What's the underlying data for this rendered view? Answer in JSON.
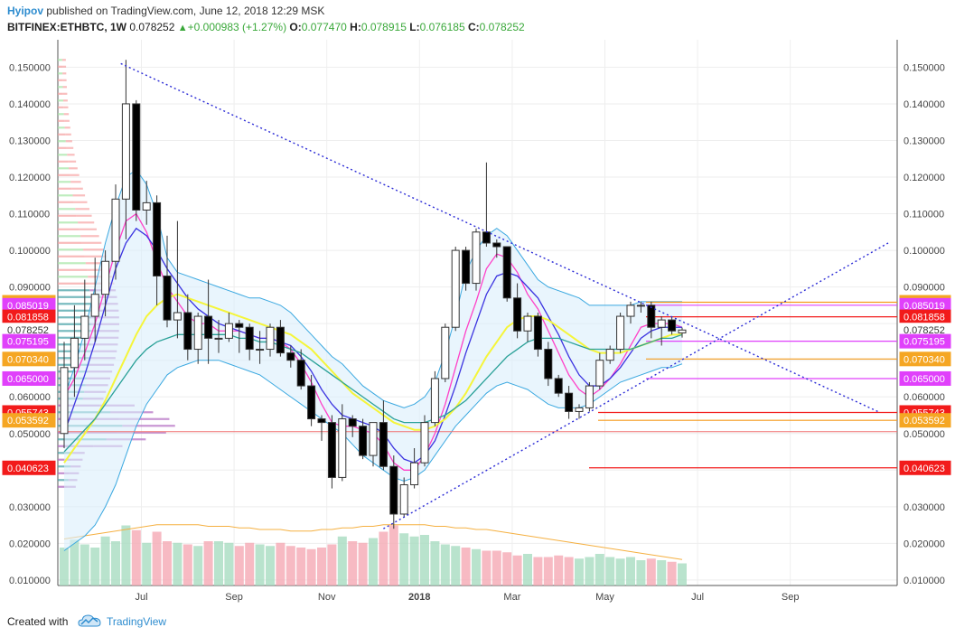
{
  "header": {
    "author": "Hyipov",
    "published_text": "published on TradingView.com, June 12, 2018 12:29 MSK",
    "symbol": "BITFINEX:ETHBTC, 1W",
    "last_price": "0.078252",
    "change": "+0.000983 (+1.27%)",
    "o_label": "O:",
    "o_value": "0.077470",
    "h_label": "H:",
    "h_value": "0.078915",
    "l_label": "L:",
    "l_value": "0.076185",
    "c_label": "C:",
    "c_value": "0.078252"
  },
  "footer": {
    "created_with": "Created with",
    "brand": "TradingView"
  },
  "chart_data": {
    "type": "candlestick",
    "symbol": "BITFINEX:ETHBTC",
    "interval": "1W",
    "y_ticks": [
      "0.150000",
      "0.140000",
      "0.130000",
      "0.120000",
      "0.110000",
      "0.100000",
      "0.090000",
      "0.080000",
      "0.070000",
      "0.060000",
      "0.050000",
      "0.040000",
      "0.030000",
      "0.020000",
      "0.010000"
    ],
    "x_ticks": [
      "Jul",
      "Sep",
      "Nov",
      "2018",
      "Mar",
      "May",
      "Jul",
      "Sep"
    ],
    "price_levels": [
      {
        "label": "0.085829",
        "value": 0.085829,
        "color": "#f5a623",
        "line": "#f59a1a"
      },
      {
        "label": "0.085019",
        "value": 0.085019,
        "color": "#e040fb",
        "line": "#e040fb"
      },
      {
        "label": "0.081858",
        "value": 0.081858,
        "color": "#f21b1b",
        "line": "#f21b1b"
      },
      {
        "label": "0.078252",
        "value": 0.078252,
        "color": "#ffffff",
        "line": ""
      },
      {
        "label": "0.075195",
        "value": 0.075195,
        "color": "#e040fb",
        "line": "#e040fb"
      },
      {
        "label": "0.070340",
        "value": 0.07034,
        "color": "#f5a623",
        "line": "#f59a1a"
      },
      {
        "label": "0.065000",
        "value": 0.065,
        "color": "#e040fb",
        "line": "#e040fb"
      },
      {
        "label": "0.055743",
        "value": 0.055743,
        "color": "#f21b1b",
        "line": "#f21b1b"
      },
      {
        "label": "0.053592",
        "value": 0.053592,
        "color": "#f5a623",
        "line": "#f59a1a"
      },
      {
        "label": "0.040623",
        "value": 0.040623,
        "color": "#f21b1b",
        "line": "#f21b1b"
      }
    ],
    "candles": [
      {
        "o": 0.05,
        "h": 0.075,
        "l": 0.046,
        "c": 0.068
      },
      {
        "o": 0.068,
        "h": 0.085,
        "l": 0.06,
        "c": 0.076
      },
      {
        "o": 0.076,
        "h": 0.092,
        "l": 0.07,
        "c": 0.082
      },
      {
        "o": 0.082,
        "h": 0.098,
        "l": 0.075,
        "c": 0.088
      },
      {
        "o": 0.088,
        "h": 0.1,
        "l": 0.082,
        "c": 0.097
      },
      {
        "o": 0.097,
        "h": 0.118,
        "l": 0.092,
        "c": 0.114
      },
      {
        "o": 0.114,
        "h": 0.152,
        "l": 0.103,
        "c": 0.14
      },
      {
        "o": 0.14,
        "h": 0.141,
        "l": 0.108,
        "c": 0.111
      },
      {
        "o": 0.111,
        "h": 0.119,
        "l": 0.107,
        "c": 0.113
      },
      {
        "o": 0.113,
        "h": 0.115,
        "l": 0.085,
        "c": 0.093
      },
      {
        "o": 0.093,
        "h": 0.104,
        "l": 0.079,
        "c": 0.081
      },
      {
        "o": 0.081,
        "h": 0.108,
        "l": 0.076,
        "c": 0.083
      },
      {
        "o": 0.083,
        "h": 0.088,
        "l": 0.07,
        "c": 0.073
      },
      {
        "o": 0.073,
        "h": 0.083,
        "l": 0.069,
        "c": 0.082
      },
      {
        "o": 0.082,
        "h": 0.092,
        "l": 0.069,
        "c": 0.076
      },
      {
        "o": 0.076,
        "h": 0.081,
        "l": 0.072,
        "c": 0.076
      },
      {
        "o": 0.076,
        "h": 0.083,
        "l": 0.075,
        "c": 0.08
      },
      {
        "o": 0.08,
        "h": 0.081,
        "l": 0.072,
        "c": 0.079
      },
      {
        "o": 0.079,
        "h": 0.08,
        "l": 0.07,
        "c": 0.073
      },
      {
        "o": 0.073,
        "h": 0.078,
        "l": 0.069,
        "c": 0.073
      },
      {
        "o": 0.073,
        "h": 0.08,
        "l": 0.071,
        "c": 0.079
      },
      {
        "o": 0.079,
        "h": 0.081,
        "l": 0.071,
        "c": 0.072
      },
      {
        "o": 0.072,
        "h": 0.074,
        "l": 0.068,
        "c": 0.07
      },
      {
        "o": 0.07,
        "h": 0.073,
        "l": 0.062,
        "c": 0.063
      },
      {
        "o": 0.063,
        "h": 0.066,
        "l": 0.052,
        "c": 0.054
      },
      {
        "o": 0.054,
        "h": 0.055,
        "l": 0.048,
        "c": 0.053
      },
      {
        "o": 0.053,
        "h": 0.055,
        "l": 0.035,
        "c": 0.038
      },
      {
        "o": 0.038,
        "h": 0.058,
        "l": 0.037,
        "c": 0.054
      },
      {
        "o": 0.054,
        "h": 0.055,
        "l": 0.049,
        "c": 0.052
      },
      {
        "o": 0.052,
        "h": 0.054,
        "l": 0.043,
        "c": 0.044
      },
      {
        "o": 0.044,
        "h": 0.053,
        "l": 0.041,
        "c": 0.053
      },
      {
        "o": 0.053,
        "h": 0.059,
        "l": 0.04,
        "c": 0.041
      },
      {
        "o": 0.041,
        "h": 0.044,
        "l": 0.024,
        "c": 0.028
      },
      {
        "o": 0.028,
        "h": 0.038,
        "l": 0.027,
        "c": 0.036
      },
      {
        "o": 0.036,
        "h": 0.046,
        "l": 0.035,
        "c": 0.042
      },
      {
        "o": 0.042,
        "h": 0.055,
        "l": 0.041,
        "c": 0.053
      },
      {
        "o": 0.053,
        "h": 0.067,
        "l": 0.052,
        "c": 0.065
      },
      {
        "o": 0.065,
        "h": 0.08,
        "l": 0.064,
        "c": 0.079
      },
      {
        "o": 0.079,
        "h": 0.101,
        "l": 0.078,
        "c": 0.1
      },
      {
        "o": 0.1,
        "h": 0.101,
        "l": 0.089,
        "c": 0.091
      },
      {
        "o": 0.091,
        "h": 0.106,
        "l": 0.089,
        "c": 0.105
      },
      {
        "o": 0.105,
        "h": 0.124,
        "l": 0.101,
        "c": 0.102
      },
      {
        "o": 0.102,
        "h": 0.103,
        "l": 0.098,
        "c": 0.101
      },
      {
        "o": 0.101,
        "h": 0.101,
        "l": 0.086,
        "c": 0.087
      },
      {
        "o": 0.087,
        "h": 0.091,
        "l": 0.076,
        "c": 0.078
      },
      {
        "o": 0.078,
        "h": 0.083,
        "l": 0.075,
        "c": 0.082
      },
      {
        "o": 0.082,
        "h": 0.083,
        "l": 0.071,
        "c": 0.073
      },
      {
        "o": 0.073,
        "h": 0.075,
        "l": 0.063,
        "c": 0.065
      },
      {
        "o": 0.065,
        "h": 0.066,
        "l": 0.06,
        "c": 0.061
      },
      {
        "o": 0.061,
        "h": 0.063,
        "l": 0.054,
        "c": 0.056
      },
      {
        "o": 0.056,
        "h": 0.058,
        "l": 0.054,
        "c": 0.057
      },
      {
        "o": 0.057,
        "h": 0.064,
        "l": 0.056,
        "c": 0.063
      },
      {
        "o": 0.063,
        "h": 0.072,
        "l": 0.062,
        "c": 0.07
      },
      {
        "o": 0.07,
        "h": 0.074,
        "l": 0.069,
        "c": 0.073
      },
      {
        "o": 0.073,
        "h": 0.083,
        "l": 0.072,
        "c": 0.082
      },
      {
        "o": 0.082,
        "h": 0.086,
        "l": 0.08,
        "c": 0.085
      },
      {
        "o": 0.085,
        "h": 0.086,
        "l": 0.083,
        "c": 0.085
      },
      {
        "o": 0.085,
        "h": 0.086,
        "l": 0.076,
        "c": 0.079
      },
      {
        "o": 0.079,
        "h": 0.082,
        "l": 0.074,
        "c": 0.081
      },
      {
        "o": 0.081,
        "h": 0.082,
        "l": 0.077,
        "c": 0.078
      },
      {
        "o": 0.07747,
        "h": 0.078915,
        "l": 0.076185,
        "c": 0.078252
      }
    ],
    "volume": [
      24,
      29,
      26,
      24,
      31,
      28,
      38,
      35,
      27,
      34,
      28,
      27,
      26,
      25,
      28,
      28,
      27,
      25,
      27,
      26,
      25,
      27,
      25,
      24,
      23,
      24,
      26,
      31,
      28,
      27,
      30,
      34,
      38,
      33,
      31,
      32,
      28,
      26,
      25,
      24,
      23,
      22,
      22,
      21,
      19,
      20,
      18,
      18,
      19,
      18,
      17,
      18,
      20,
      18,
      17,
      18,
      16,
      17,
      16,
      15,
      14
    ],
    "series": [
      {
        "name": "",
        "color": "#ff40c8",
        "values": [
          0.06,
          0.065,
          0.072,
          0.08,
          0.09,
          0.1,
          0.108,
          0.11,
          0.105,
          0.097,
          0.09,
          0.086,
          0.082,
          0.08,
          0.08,
          0.078,
          0.078,
          0.078,
          0.077,
          0.076,
          0.076,
          0.075,
          0.073,
          0.069,
          0.064,
          0.058,
          0.053,
          0.052,
          0.052,
          0.051,
          0.05,
          0.047,
          0.042,
          0.04,
          0.04,
          0.044,
          0.05,
          0.058,
          0.068,
          0.078,
          0.086,
          0.095,
          0.099,
          0.098,
          0.094,
          0.088,
          0.084,
          0.078,
          0.072,
          0.066,
          0.062,
          0.06,
          0.062,
          0.065,
          0.069,
          0.074,
          0.079,
          0.08,
          0.08,
          0.08,
          0.079
        ]
      },
      {
        "name": "",
        "color": "#3b33e0",
        "values": [
          0.05,
          0.058,
          0.066,
          0.075,
          0.085,
          0.095,
          0.102,
          0.106,
          0.104,
          0.1,
          0.095,
          0.091,
          0.087,
          0.084,
          0.082,
          0.08,
          0.079,
          0.078,
          0.077,
          0.076,
          0.076,
          0.075,
          0.074,
          0.071,
          0.067,
          0.062,
          0.058,
          0.055,
          0.054,
          0.053,
          0.052,
          0.05,
          0.046,
          0.043,
          0.042,
          0.044,
          0.048,
          0.055,
          0.063,
          0.072,
          0.08,
          0.088,
          0.093,
          0.094,
          0.093,
          0.09,
          0.087,
          0.082,
          0.077,
          0.071,
          0.066,
          0.063,
          0.063,
          0.065,
          0.068,
          0.072,
          0.076,
          0.078,
          0.079,
          0.079,
          0.079
        ]
      },
      {
        "name": "",
        "color": "#f5f53a",
        "values": [
          0.042,
          0.046,
          0.05,
          0.054,
          0.059,
          0.065,
          0.071,
          0.077,
          0.082,
          0.085,
          0.087,
          0.088,
          0.087,
          0.086,
          0.085,
          0.084,
          0.083,
          0.082,
          0.081,
          0.08,
          0.079,
          0.078,
          0.077,
          0.075,
          0.073,
          0.07,
          0.067,
          0.064,
          0.061,
          0.059,
          0.057,
          0.055,
          0.053,
          0.052,
          0.051,
          0.051,
          0.052,
          0.054,
          0.057,
          0.061,
          0.066,
          0.071,
          0.075,
          0.079,
          0.081,
          0.082,
          0.082,
          0.081,
          0.079,
          0.077,
          0.075,
          0.073,
          0.072,
          0.072,
          0.072,
          0.073,
          0.074,
          0.075,
          0.076,
          0.077,
          0.077
        ]
      },
      {
        "name": "",
        "color": "#2aa198",
        "values": [
          0.045,
          0.048,
          0.051,
          0.054,
          0.058,
          0.062,
          0.066,
          0.07,
          0.073,
          0.075,
          0.076,
          0.077,
          0.077,
          0.077,
          0.077,
          0.077,
          0.077,
          0.076,
          0.076,
          0.075,
          0.075,
          0.074,
          0.073,
          0.072,
          0.07,
          0.068,
          0.066,
          0.064,
          0.062,
          0.06,
          0.058,
          0.056,
          0.054,
          0.053,
          0.053,
          0.053,
          0.054,
          0.055,
          0.057,
          0.059,
          0.062,
          0.065,
          0.068,
          0.071,
          0.073,
          0.075,
          0.076,
          0.076,
          0.076,
          0.075,
          0.074,
          0.073,
          0.073,
          0.073,
          0.073,
          0.073,
          0.074,
          0.075,
          0.076,
          0.076,
          0.077
        ]
      }
    ],
    "bollinger": {
      "upper": [
        0.06,
        0.068,
        0.078,
        0.09,
        0.102,
        0.112,
        0.12,
        0.122,
        0.118,
        0.11,
        0.098,
        0.094,
        0.093,
        0.092,
        0.091,
        0.09,
        0.089,
        0.088,
        0.087,
        0.087,
        0.086,
        0.085,
        0.083,
        0.08,
        0.077,
        0.074,
        0.071,
        0.069,
        0.066,
        0.063,
        0.061,
        0.059,
        0.058,
        0.057,
        0.058,
        0.06,
        0.064,
        0.072,
        0.082,
        0.094,
        0.1,
        0.104,
        0.106,
        0.104,
        0.1,
        0.096,
        0.092,
        0.09,
        0.089,
        0.088,
        0.087,
        0.085,
        0.085,
        0.085,
        0.085,
        0.085,
        0.086,
        0.086,
        0.086,
        0.086,
        0.086
      ],
      "lower": [
        0.018,
        0.02,
        0.022,
        0.025,
        0.03,
        0.036,
        0.044,
        0.052,
        0.058,
        0.062,
        0.066,
        0.068,
        0.069,
        0.07,
        0.07,
        0.07,
        0.069,
        0.068,
        0.067,
        0.066,
        0.064,
        0.062,
        0.06,
        0.058,
        0.056,
        0.054,
        0.052,
        0.05,
        0.047,
        0.044,
        0.042,
        0.04,
        0.038,
        0.037,
        0.038,
        0.04,
        0.044,
        0.048,
        0.052,
        0.055,
        0.058,
        0.061,
        0.063,
        0.064,
        0.063,
        0.062,
        0.06,
        0.058,
        0.057,
        0.057,
        0.057,
        0.058,
        0.06,
        0.062,
        0.064,
        0.065,
        0.066,
        0.067,
        0.068,
        0.068,
        0.069
      ]
    },
    "volume_ma": [
      18,
      19,
      20,
      21,
      22,
      23,
      24,
      25,
      26,
      27,
      27,
      27,
      27,
      27,
      26,
      26,
      26,
      25,
      25,
      24,
      24,
      24,
      23,
      23,
      23,
      24,
      24,
      25,
      25,
      26,
      26,
      27,
      27,
      27,
      27,
      27,
      26,
      26,
      25,
      25,
      24,
      24,
      23,
      22,
      21,
      20,
      19,
      18,
      17,
      16,
      15,
      14,
      13,
      12,
      11,
      10,
      9,
      8,
      7,
      6,
      5
    ],
    "trendlines": [
      {
        "name": "",
        "x1": 5.5,
        "y1": 0.151,
        "x2": 79,
        "y2": 0.056,
        "color": "#2b2bd6"
      },
      {
        "name": "",
        "x1": 31,
        "y1": 0.024,
        "x2": 80,
        "y2": 0.102,
        "color": "#2b2bd6"
      }
    ]
  }
}
